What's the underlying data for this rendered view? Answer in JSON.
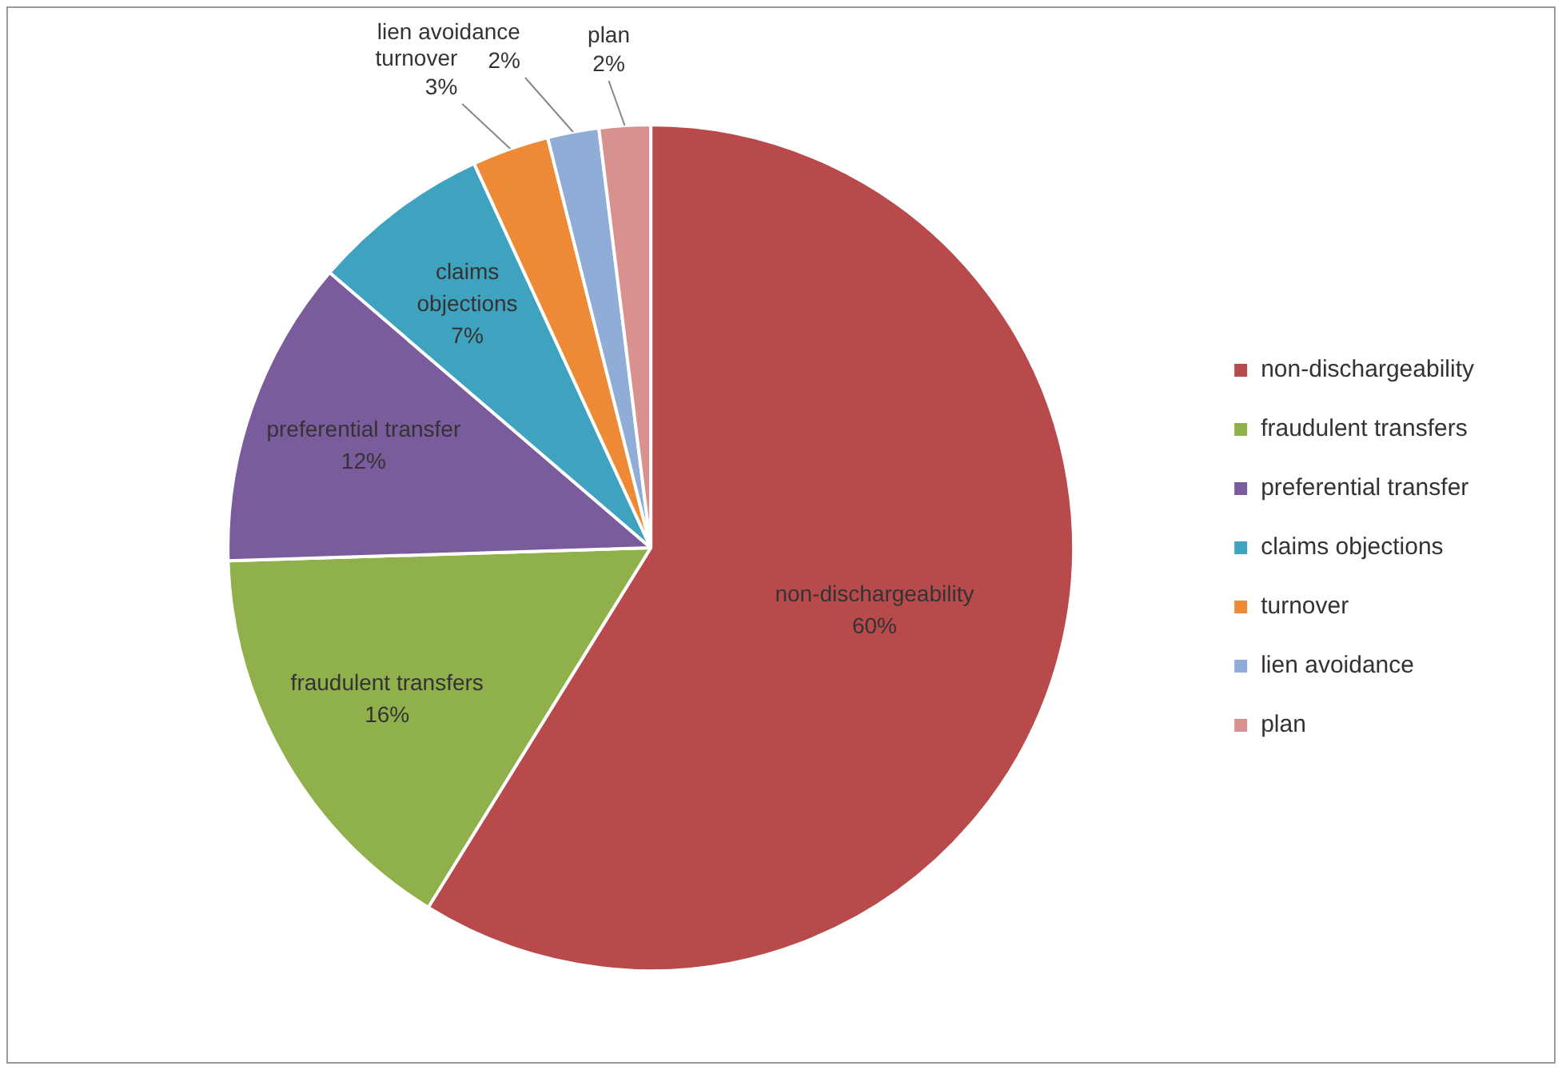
{
  "chart_data": {
    "type": "pie",
    "categories": [
      "non-dischargeability",
      "fraudulent transfers",
      "preferential transfer",
      "claims objections",
      "turnover",
      "lien avoidance",
      "plan"
    ],
    "values": [
      60,
      16,
      12,
      7,
      3,
      2,
      2
    ],
    "value_labels": [
      "60%",
      "16%",
      "12%",
      "7%",
      "3%",
      "2%",
      "2%"
    ],
    "colors": [
      "#b94a4c",
      "#8fb04a",
      "#7a5c9c",
      "#3fa3bf",
      "#ee8a35",
      "#8fadd6",
      "#d99190"
    ],
    "legend": "right"
  }
}
